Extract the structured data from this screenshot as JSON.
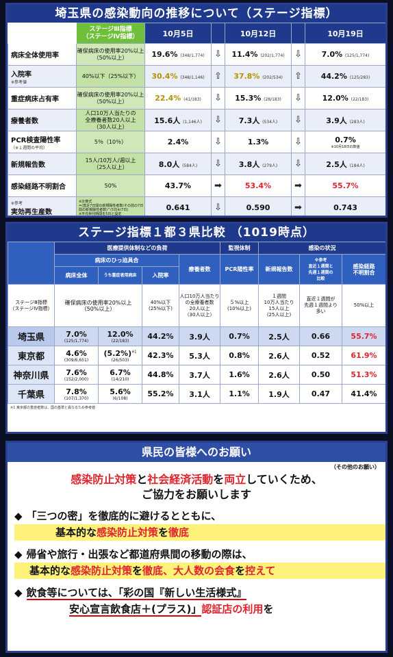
{
  "panel1": {
    "title": "埼玉県の感染動向の推移について（ステージ指標）",
    "header": {
      "standard": "ステージⅢ指標\n（ステージⅣ指標）",
      "dates": [
        "10月5日",
        "10月12日",
        "10月19日"
      ]
    },
    "rows": [
      {
        "label": "病床全体使用率",
        "note": "",
        "standard": "確保病床の使用率20%以上\n（50%以上）",
        "v": [
          {
            "val": "19.6%",
            "sub": "(348/1,774)",
            "cls": ""
          },
          {
            "val": "11.4%",
            "sub": "(202/1,774)",
            "cls": ""
          },
          {
            "val": "7.0%",
            "sub": "(125/1,774)",
            "cls": ""
          }
        ],
        "arrows": [
          "⇩",
          "⇩"
        ]
      },
      {
        "label": "入院率",
        "note": "※参考値",
        "standard": "40%以下（25%以下）",
        "v": [
          {
            "val": "30.4%",
            "sub": "(348/1,146)",
            "cls": "y"
          },
          {
            "val": "37.8%",
            "sub": "(202/534)",
            "cls": "y"
          },
          {
            "val": "44.2%",
            "sub": "(125/283)",
            "cls": ""
          }
        ],
        "arrows": [
          "⇧",
          "⇧"
        ]
      },
      {
        "label": "重症病床占有率",
        "note": "",
        "standard": "確保病床の使用率20%以上\n（50%以上）",
        "v": [
          {
            "val": "22.4%",
            "sub": "(41/183)",
            "cls": "y"
          },
          {
            "val": "15.3%",
            "sub": "(28/183)",
            "cls": ""
          },
          {
            "val": "12.0%",
            "sub": "(22/183)",
            "cls": ""
          }
        ],
        "arrows": [
          "⇩",
          "⇩"
        ]
      },
      {
        "label": "療養者数",
        "note": "",
        "standard": "人口10万人当たりの\n全療養者数20人以上\n（30人以上）",
        "v": [
          {
            "val": "15.6人",
            "sub": "(1,146人)",
            "cls": ""
          },
          {
            "val": "7.3人",
            "sub": "(534人)",
            "cls": ""
          },
          {
            "val": "3.9人",
            "sub": "(283人)",
            "cls": ""
          }
        ],
        "arrows": [
          "⇩",
          "⇩"
        ]
      },
      {
        "label": "PCR検査陽性率",
        "note": "（※１週間の平均）",
        "standard": "5％（10％）",
        "v": [
          {
            "val": "2.4%",
            "sub": "",
            "cls": ""
          },
          {
            "val": "1.3%",
            "sub": "",
            "cls": ""
          },
          {
            "val": "0.7%",
            "sub": "",
            "sub2": "※10月18日の数値",
            "cls": ""
          }
        ],
        "arrows": [
          "⇩",
          "⇩"
        ]
      },
      {
        "label": "新規報告数",
        "note": "",
        "standard": "15人/10万人/週以上\n（25人以上）",
        "v": [
          {
            "val": "8.0人",
            "sub": "(584人)",
            "cls": ""
          },
          {
            "val": "3.8人",
            "sub": "(279人)",
            "cls": ""
          },
          {
            "val": "2.5人",
            "sub": "(184人)",
            "cls": ""
          }
        ],
        "arrows": [
          "⇩",
          "⇩"
        ]
      },
      {
        "label": "感染経路不明割合",
        "note": "",
        "standard": "50%",
        "v": [
          {
            "val": "43.7%",
            "sub": "",
            "cls": ""
          },
          {
            "val": "53.4%",
            "sub": "",
            "cls": "r"
          },
          {
            "val": "55.7%",
            "sub": "",
            "cls": "r"
          }
        ],
        "arrows": [
          "➡",
          "➡"
        ]
      },
      {
        "label": "実効再生産数",
        "note": "※参考",
        "standard": "※計算式\n=(直近7日間の新規陽性者数/その前の7日間の新規陽性者数)^(5日※/7日)\n※平均世代時間を5日と設定",
        "v": [
          {
            "val": "0.641",
            "sub": "",
            "cls": ""
          },
          {
            "val": "0.590",
            "sub": "",
            "cls": ""
          },
          {
            "val": "0.743",
            "sub": "",
            "cls": ""
          }
        ],
        "arrows": [
          "⇩",
          "➡"
        ]
      }
    ]
  },
  "panel2": {
    "title": "ステージ指標１都３県比較 （1019時点）",
    "h1": {
      "medical": "医療提供体制などの負荷",
      "monitor": "監視体制",
      "infection": "感染の状況"
    },
    "h2": {
      "hospital": "病床のひっ迫具合"
    },
    "h3": [
      "病床全体",
      "うち重症者用病床",
      "入院率",
      "療養者数",
      "PCR陽性率",
      "新規報告数",
      "※参考\n直近１週間と\n先週１週間の\n比較",
      "感染経路\n不明割合"
    ],
    "standard": {
      "label": "ステージⅢ指標\n（ステージⅣ指標）",
      "cells": [
        "確保病床の使用率20%以上\n（50%以上）",
        "40%以下\n(25%以下)",
        "人口10万人当たり\nの全療養者数\n20人以上\n（30人以上）",
        "５%以上\n(10%以上)",
        "１週間\n10万人当たり\n15人以上\n(25人以上)",
        "直近１週間が\n先週１週間より\n多い",
        "50%以上"
      ]
    },
    "rows": [
      {
        "pref": "埼玉県",
        "c": [
          {
            "v": "7.0%",
            "s": "(125/1,774)"
          },
          {
            "v": "12.0%",
            "s": "(22/183)"
          },
          {
            "v": "44.2%"
          },
          {
            "v": "3.9人"
          },
          {
            "v": "0.7%"
          },
          {
            "v": "2.5人"
          },
          {
            "v": "0.66"
          },
          {
            "v": "55.7%",
            "cls": "r"
          }
        ]
      },
      {
        "pref": "東京都",
        "c": [
          {
            "v": "4.6%",
            "s": "(309/6,651)"
          },
          {
            "v": "(5.2%)",
            "s": "(26/503)",
            "mark": "※1"
          },
          {
            "v": "42.3%"
          },
          {
            "v": "5.3人"
          },
          {
            "v": "0.8%"
          },
          {
            "v": "2.6人"
          },
          {
            "v": "0.52"
          },
          {
            "v": "61.9%",
            "cls": "r"
          }
        ]
      },
      {
        "pref": "神奈川県",
        "c": [
          {
            "v": "7.6%",
            "s": "(152/2,000)"
          },
          {
            "v": "6.7%",
            "s": "(14/210)"
          },
          {
            "v": "44.8%"
          },
          {
            "v": "3.7人"
          },
          {
            "v": "1.6%"
          },
          {
            "v": "2.6人"
          },
          {
            "v": "0.50"
          },
          {
            "v": "51.3%",
            "cls": "r"
          }
        ]
      },
      {
        "pref": "千葉県",
        "c": [
          {
            "v": "7.8%",
            "s": "(107/1,370)"
          },
          {
            "v": "5.6%",
            "s": "(6/108)"
          },
          {
            "v": "55.2%"
          },
          {
            "v": "3.1人"
          },
          {
            "v": "1.1%"
          },
          {
            "v": "1.9人"
          },
          {
            "v": "0.47"
          },
          {
            "v": "41.4%"
          }
        ]
      }
    ],
    "note": "※1 東京都の重症者数は、国の基準と異なるため参考値"
  },
  "panel3": {
    "title": "県民の皆様へのお願い",
    "other": "（その他のお願い）",
    "l1a": "感染防止対策",
    "l1b": "と",
    "l1c": "社会経済活動",
    "l1d": "を",
    "l1e": "両立",
    "l1f": "していくため、",
    "l2": "ご協力をお願いします",
    "b1a": "「三つの密」を徹底的に避けるとともに、",
    "b1b": "基本的な",
    "b1c": "感染防止対策",
    "b1d": "を",
    "b1e": "徹底",
    "b2a": "帰省や旅行・出張など都道府県間の移動の際は、",
    "b2b": "基本的な",
    "b2c": "感染防止対策",
    "b2d": "を",
    "b2e": "徹底、大人数の会食",
    "b2f": "を",
    "b2g": "控えて",
    "b3a": "飲食等については、「彩の国『新しい生活様式』",
    "b3b": "安心宣言飲食店＋(プラス)」",
    "b3c": "認証店の利用",
    "b3d": "を",
    "diamond": "◆"
  }
}
